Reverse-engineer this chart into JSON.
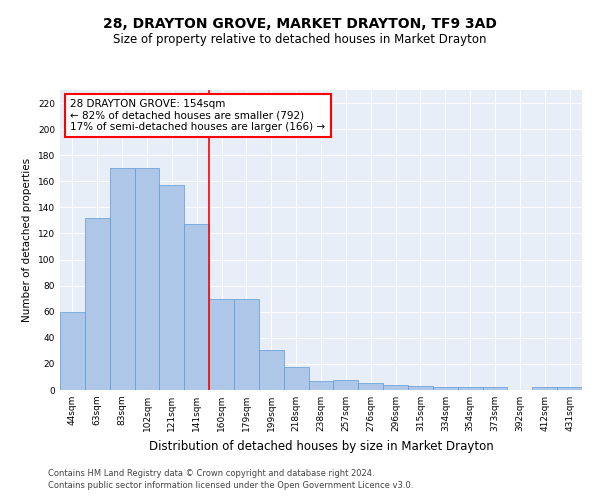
{
  "title": "28, DRAYTON GROVE, MARKET DRAYTON, TF9 3AD",
  "subtitle": "Size of property relative to detached houses in Market Drayton",
  "xlabel": "Distribution of detached houses by size in Market Drayton",
  "ylabel": "Number of detached properties",
  "categories": [
    "44sqm",
    "63sqm",
    "83sqm",
    "102sqm",
    "121sqm",
    "141sqm",
    "160sqm",
    "179sqm",
    "199sqm",
    "218sqm",
    "238sqm",
    "257sqm",
    "276sqm",
    "296sqm",
    "315sqm",
    "334sqm",
    "354sqm",
    "373sqm",
    "392sqm",
    "412sqm",
    "431sqm"
  ],
  "values": [
    60,
    132,
    170,
    170,
    157,
    127,
    70,
    70,
    31,
    18,
    7,
    8,
    5,
    4,
    3,
    2,
    2,
    2,
    0,
    2,
    2
  ],
  "bar_color": "#aec6e8",
  "bar_edge_color": "#5b9bd5",
  "vline_x": 5.5,
  "vline_color": "red",
  "annotation_line1": "28 DRAYTON GROVE: 154sqm",
  "annotation_line2": "← 82% of detached houses are smaller (792)",
  "annotation_line3": "17% of semi-detached houses are larger (166) →",
  "annotation_box_color": "white",
  "annotation_box_edge": "red",
  "ylim": [
    0,
    230
  ],
  "yticks": [
    0,
    20,
    40,
    60,
    80,
    100,
    120,
    140,
    160,
    180,
    200,
    220
  ],
  "bg_color": "#e8eef7",
  "footer1": "Contains HM Land Registry data © Crown copyright and database right 2024.",
  "footer2": "Contains public sector information licensed under the Open Government Licence v3.0.",
  "title_fontsize": 10,
  "subtitle_fontsize": 8.5,
  "xlabel_fontsize": 8.5,
  "ylabel_fontsize": 7.5,
  "tick_fontsize": 6.5,
  "annotation_fontsize": 7.5,
  "footer_fontsize": 6.0
}
